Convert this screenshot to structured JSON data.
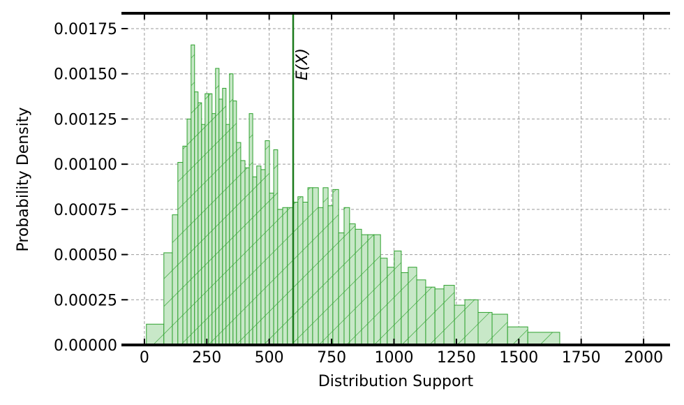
{
  "chart_data": {
    "type": "histogram",
    "xlabel": "Distribution Support",
    "ylabel": "Probability Density",
    "color": "#2ca02c",
    "fill": "#c8e8c8",
    "bins": [
      8,
      78,
      112,
      134,
      154,
      171,
      187,
      201,
      215,
      229,
      243,
      257,
      271,
      285,
      299,
      313,
      327,
      341,
      355,
      369,
      386,
      403,
      420,
      434,
      450,
      467,
      484,
      501,
      518,
      534,
      554,
      573,
      596,
      615,
      635,
      655,
      674,
      697,
      716,
      736,
      755,
      778,
      800,
      822,
      845,
      870,
      895,
      920,
      946,
      973,
      1001,
      1029,
      1057,
      1091,
      1127,
      1164,
      1200,
      1242,
      1284,
      1337,
      1393,
      1455,
      1536,
      1664,
      2000
    ],
    "values": [
      0.000115,
      0.00051,
      0.00072,
      0.00101,
      0.0011,
      0.00125,
      0.00166,
      0.0014,
      0.00134,
      0.00122,
      0.00139,
      0.00139,
      0.00128,
      0.00153,
      0.00136,
      0.00142,
      0.00122,
      0.0015,
      0.00135,
      0.00112,
      0.00102,
      0.00098,
      0.00128,
      0.00093,
      0.00099,
      0.00097,
      0.00113,
      0.00084,
      0.00108,
      0.00075,
      0.00076,
      0.00076,
      0.00079,
      0.00082,
      0.00079,
      0.00087,
      0.00087,
      0.00076,
      0.00087,
      0.00077,
      0.00086,
      0.00062,
      0.00076,
      0.00067,
      0.00064,
      0.00061,
      0.00061,
      0.00061,
      0.00048,
      0.00043,
      0.00052,
      0.0004,
      0.00043,
      0.00036,
      0.00032,
      0.00031,
      0.00033,
      0.00022,
      0.00025,
      0.00018,
      0.00017,
      0.0001,
      7e-05,
      5e-06
    ],
    "mean_line": {
      "x": 596,
      "label": "E(X)",
      "color": "#1a7a1a"
    },
    "xlim": [
      -92,
      2106
    ],
    "ylim": [
      0,
      0.001835
    ],
    "xticks": [
      0,
      250,
      500,
      750,
      1000,
      1250,
      1500,
      1750,
      2000
    ],
    "yticks": [
      {
        "value": 0,
        "label": "0.00000"
      },
      {
        "value": 0.00025,
        "label": "0.00025"
      },
      {
        "value": 0.0005,
        "label": "0.00050"
      },
      {
        "value": 0.00075,
        "label": "0.00075"
      },
      {
        "value": 0.001,
        "label": "0.00100"
      },
      {
        "value": 0.00125,
        "label": "0.00125"
      },
      {
        "value": 0.0015,
        "label": "0.00150"
      },
      {
        "value": 0.00175,
        "label": "0.00175"
      }
    ],
    "grid": true
  }
}
